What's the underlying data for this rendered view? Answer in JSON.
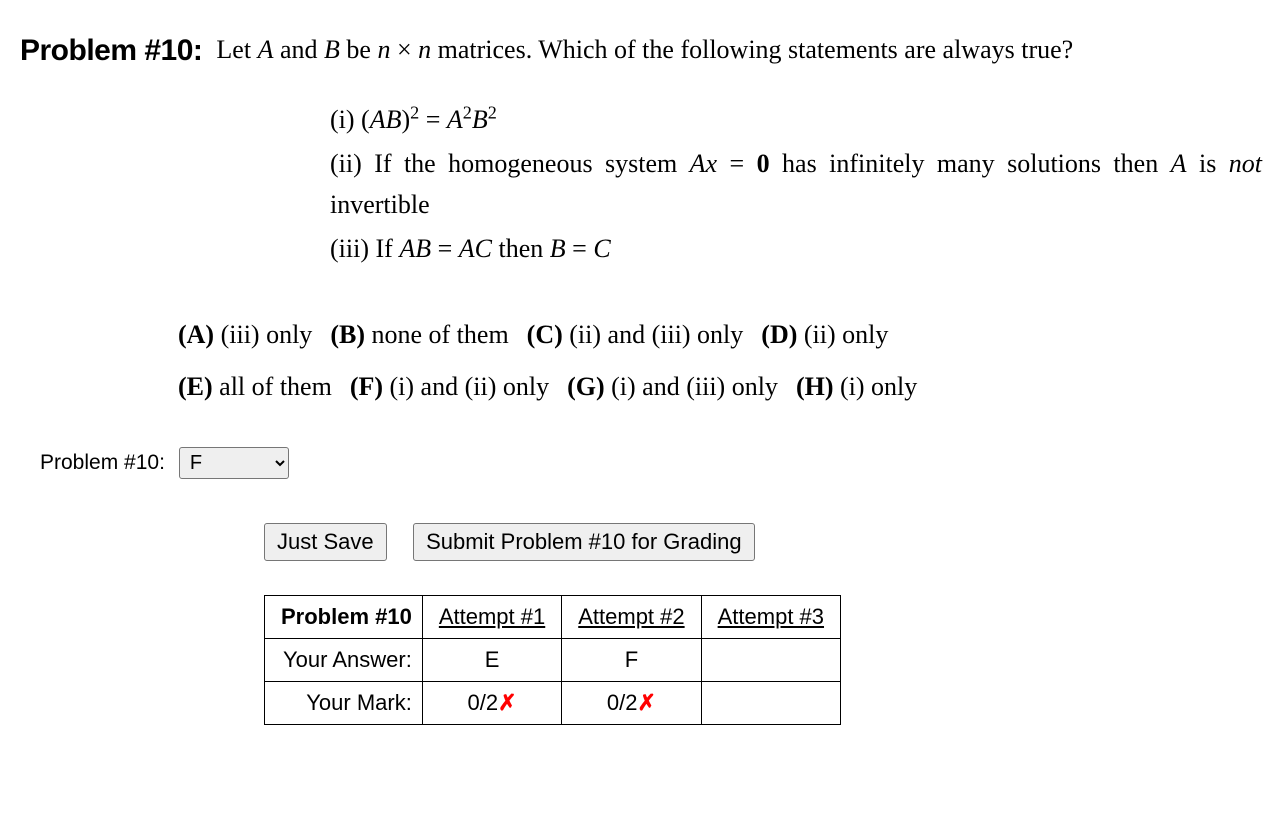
{
  "problem": {
    "number_label": "Problem #10:",
    "question_html": "Let <span class='math-ital'>A</span> and <span class='math-ital'>B</span> be <span class='math-ital'>n</span> &times; <span class='math-ital'>n</span> matrices. Which of the following statements are always true?",
    "statements": [
      "(i) (<span class='math-ital'>AB</span>)<sup>2</sup> = <span class='math-ital'>A</span><sup>2</sup><span class='math-ital'>B</span><sup>2</sup>",
      "(ii) If the homogeneous system <span class='math-ital'>A</span><span class='bold0 math-ital' style='font-weight:normal;'>x</span> = <span class='bold0'>0</span> has infinitely many solutions then <span class='math-ital'>A</span> is <span class='math-ital'>not</span> invertible",
      "(iii) If <span class='math-ital'>AB</span> = <span class='math-ital'>AC</span> then <span class='math-ital'>B</span> = <span class='math-ital'>C</span>"
    ],
    "options": [
      {
        "letter": "(A)",
        "text": "(iii) only"
      },
      {
        "letter": "(B)",
        "text": "none of them"
      },
      {
        "letter": "(C)",
        "text": "(ii) and (iii) only"
      },
      {
        "letter": "(D)",
        "text": "(ii) only"
      },
      {
        "letter": "(E)",
        "text": "all of them"
      },
      {
        "letter": "(F)",
        "text": "(i) and (ii) only"
      },
      {
        "letter": "(G)",
        "text": "(i) and (iii) only"
      },
      {
        "letter": "(H)",
        "text": "(i) only"
      }
    ],
    "option_rows": [
      4,
      4
    ]
  },
  "answer_area": {
    "label": "Problem #10:",
    "choices": [
      "",
      "A",
      "B",
      "C",
      "D",
      "E",
      "F",
      "G",
      "H"
    ],
    "selected": "F"
  },
  "buttons": {
    "save": "Just Save",
    "submit": "Submit Problem #10 for Grading"
  },
  "results": {
    "header_label": "Problem #10",
    "columns": [
      "Attempt #1",
      "Attempt #2",
      "Attempt #3"
    ],
    "rows": [
      {
        "label": "Your Answer:",
        "values": [
          "E",
          "F",
          ""
        ]
      },
      {
        "label": "Your Mark:",
        "values": [
          "0/2✗",
          "0/2✗",
          ""
        ]
      }
    ],
    "x_color": "#ff0000"
  },
  "style": {
    "background": "#ffffff",
    "text_color": "#000000",
    "serif_font": "Georgia",
    "sans_font": "Verdana",
    "heading_fontsize": 30,
    "body_fontsize": 26,
    "ui_fontsize": 22,
    "border_color": "#000000",
    "button_bg": "#efefef",
    "button_border": "#767676"
  }
}
